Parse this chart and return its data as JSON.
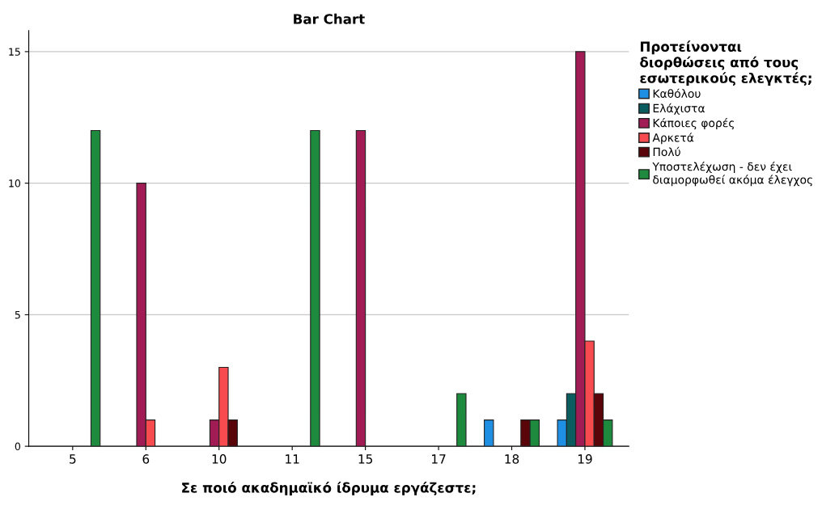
{
  "chart_data": {
    "type": "bar",
    "title": "Bar Chart",
    "xlabel": "Σε ποιό ακαδημαϊκό ίδρυμα εργάζεστε;",
    "legend_title": "Προτείνονται\nδιορθώσεις από τους\nεσωτερικούς ελεγκτές;",
    "categories": [
      "5",
      "6",
      "10",
      "11",
      "15",
      "17",
      "18",
      "19"
    ],
    "series": [
      {
        "name": "Καθόλου",
        "color": "#1f8fe3",
        "values": [
          null,
          null,
          null,
          null,
          null,
          null,
          1,
          1
        ]
      },
      {
        "name": "Ελάχιστα",
        "color": "#0b5c5e",
        "values": [
          null,
          null,
          null,
          null,
          null,
          null,
          null,
          2
        ]
      },
      {
        "name": "Κάποιες φορές",
        "color": "#a11c55",
        "values": [
          null,
          10,
          1,
          null,
          12,
          null,
          null,
          15
        ]
      },
      {
        "name": "Αρκετά",
        "color": "#f74b50",
        "values": [
          null,
          1,
          3,
          null,
          null,
          null,
          null,
          4
        ]
      },
      {
        "name": "Πολύ",
        "color": "#5a0509",
        "values": [
          null,
          null,
          1,
          null,
          null,
          null,
          1,
          2
        ]
      },
      {
        "name": "Υποστελέχωση - δεν έχει\nδιαμορφωθεί ακόμα έλεγχος",
        "color": "#1e8a3e",
        "values": [
          12,
          null,
          null,
          12,
          null,
          2,
          1,
          1
        ]
      }
    ],
    "ylim": [
      0,
      15.8
    ],
    "yticks": [
      0,
      5,
      10,
      15
    ],
    "grid": "y",
    "legend": "right"
  }
}
